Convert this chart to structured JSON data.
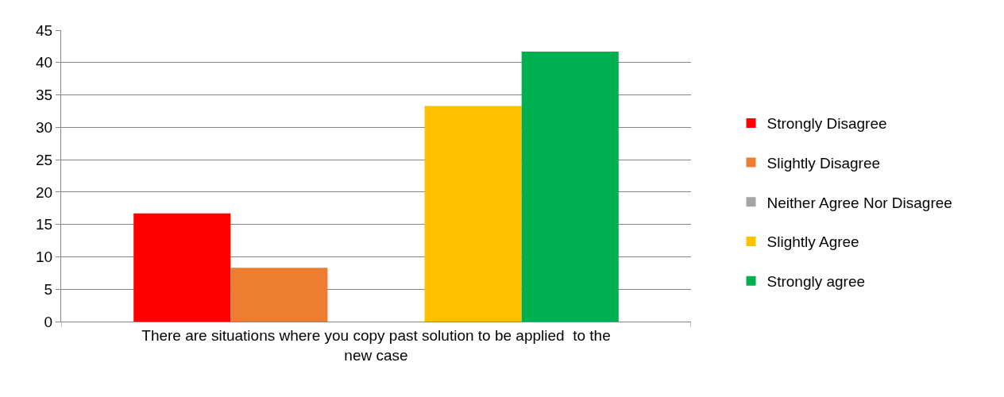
{
  "chart_data": {
    "type": "bar",
    "categories": [
      "There are situations where you copy past solution to be applied  to the new case"
    ],
    "series": [
      {
        "name": "Strongly Disagree",
        "color": "#ff0000",
        "values": [
          16.7
        ]
      },
      {
        "name": "Slightly Disagree",
        "color": "#ed7d31",
        "values": [
          8.3
        ]
      },
      {
        "name": "Neither Agree Nor Disagree",
        "color": "#a5a5a5",
        "values": [
          0
        ]
      },
      {
        "name": "Slightly Agree",
        "color": "#ffc000",
        "values": [
          33.3
        ]
      },
      {
        "name": "Strongly agree",
        "color": "#00b050",
        "values": [
          41.7
        ]
      }
    ],
    "ylim": [
      0,
      45
    ],
    "yticks": [
      0,
      5,
      10,
      15,
      20,
      25,
      30,
      35,
      40,
      45
    ],
    "grid": "y",
    "legend": "right"
  }
}
